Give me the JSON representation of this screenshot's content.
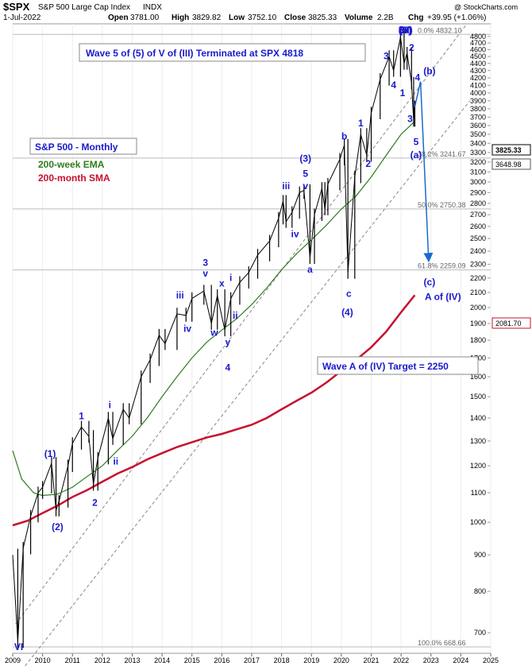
{
  "header": {
    "symbol": "$SPX",
    "name": "S&P 500 Large Cap Index",
    "exchange": "INDX",
    "watermark": "@ StockCharts.com",
    "date": "1-Jul-2022",
    "open_label": "Open",
    "open": "3781.00",
    "high_label": "High",
    "high": "3829.82",
    "low_label": "Low",
    "low": "3752.10",
    "close_label": "Close",
    "close": "3825.33",
    "volume_label": "Volume",
    "volume": "2.2B",
    "chg_label": "Chg",
    "chg": "+39.95 (+1.06%)"
  },
  "legend": {
    "title": "S&P 500 - Monthly",
    "ema": "200-week EMA",
    "sma": "200-month SMA",
    "ema_color": "#2e7d1e",
    "sma_color": "#c8102e"
  },
  "annotations": {
    "top_box": "Wave 5 of (5) of V of (III) Terminated at SPX 4818",
    "target_box": "Wave A of (IV) Target = 2250"
  },
  "price_tags": [
    {
      "value": "3825.33",
      "style": "dark"
    },
    {
      "value": "3648.98",
      "style": "light"
    },
    {
      "value": "2081.70",
      "style": "red"
    }
  ],
  "chart_data": {
    "type": "line",
    "title": "",
    "xlabel": "",
    "ylabel": "",
    "y_scale": "log",
    "ylim": [
      655,
      5000
    ],
    "xlim": [
      2009.0,
      2025.0
    ],
    "x_ticks": [
      "2009",
      "2010",
      "2011",
      "2012",
      "2013",
      "2014",
      "2015",
      "2016",
      "2017",
      "2018",
      "2019",
      "2020",
      "2021",
      "2022",
      "2023",
      "2024",
      "2025"
    ],
    "y_ticks": [
      "700",
      "800",
      "900",
      "1000",
      "1100",
      "1200",
      "1300",
      "1400",
      "1500",
      "1600",
      "1700",
      "1800",
      "1900",
      "2000",
      "2100",
      "2200",
      "2300",
      "2400",
      "2500",
      "2600",
      "2700",
      "2800",
      "2900",
      "3000",
      "3100",
      "3200",
      "3300",
      "3400",
      "3500",
      "3600",
      "3700",
      "3800",
      "3900",
      "4000",
      "4100",
      "4200",
      "4300",
      "4400",
      "4500",
      "4600",
      "4700",
      "4800"
    ],
    "series": [
      {
        "name": "",
        "color": "#000000",
        "points": [
          [
            2009.0,
            900
          ],
          [
            2009.17,
            680
          ],
          [
            2009.35,
            920
          ],
          [
            2009.6,
            1020
          ],
          [
            2009.85,
            1100
          ],
          [
            2010.0,
            1120
          ],
          [
            2010.3,
            1210
          ],
          [
            2010.45,
            1040
          ],
          [
            2010.55,
            1070
          ],
          [
            2010.85,
            1200
          ],
          [
            2011.0,
            1290
          ],
          [
            2011.3,
            1360
          ],
          [
            2011.55,
            1320
          ],
          [
            2011.7,
            1130
          ],
          [
            2011.85,
            1230
          ],
          [
            2012.2,
            1400
          ],
          [
            2012.35,
            1310
          ],
          [
            2012.7,
            1440
          ],
          [
            2012.9,
            1400
          ],
          [
            2013.3,
            1600
          ],
          [
            2013.6,
            1690
          ],
          [
            2013.9,
            1830
          ],
          [
            2014.1,
            1780
          ],
          [
            2014.5,
            1960
          ],
          [
            2014.8,
            1950
          ],
          [
            2015.0,
            2060
          ],
          [
            2015.4,
            2110
          ],
          [
            2015.65,
            1900
          ],
          [
            2015.85,
            2080
          ],
          [
            2016.1,
            1860
          ],
          [
            2016.3,
            2060
          ],
          [
            2016.6,
            2170
          ],
          [
            2016.9,
            2240
          ],
          [
            2017.2,
            2370
          ],
          [
            2017.6,
            2480
          ],
          [
            2017.9,
            2670
          ],
          [
            2018.05,
            2820
          ],
          [
            2018.15,
            2640
          ],
          [
            2018.35,
            2720
          ],
          [
            2018.6,
            2900
          ],
          [
            2018.75,
            2920
          ],
          [
            2018.95,
            2350
          ],
          [
            2019.1,
            2700
          ],
          [
            2019.35,
            2940
          ],
          [
            2019.45,
            2750
          ],
          [
            2019.55,
            2980
          ],
          [
            2019.95,
            3230
          ],
          [
            2020.1,
            3380
          ],
          [
            2020.22,
            2240
          ],
          [
            2020.45,
            3050
          ],
          [
            2020.65,
            3500
          ],
          [
            2020.85,
            3270
          ],
          [
            2021.0,
            3750
          ],
          [
            2021.3,
            4180
          ],
          [
            2021.6,
            4500
          ],
          [
            2021.75,
            4300
          ],
          [
            2021.98,
            4790
          ],
          [
            2022.1,
            4400
          ],
          [
            2022.2,
            4550
          ],
          [
            2022.35,
            4130
          ],
          [
            2022.42,
            3660
          ],
          [
            2022.46,
            3825
          ]
        ]
      },
      {
        "name": "200-week EMA",
        "color": "#2e7d1e",
        "points": [
          [
            2009.0,
            1260
          ],
          [
            2009.3,
            1150
          ],
          [
            2009.7,
            1100
          ],
          [
            2010.0,
            1090
          ],
          [
            2010.5,
            1095
          ],
          [
            2011.0,
            1120
          ],
          [
            2011.5,
            1160
          ],
          [
            2012.0,
            1200
          ],
          [
            2012.5,
            1260
          ],
          [
            2013.0,
            1320
          ],
          [
            2013.5,
            1400
          ],
          [
            2014.0,
            1500
          ],
          [
            2014.5,
            1600
          ],
          [
            2015.0,
            1700
          ],
          [
            2015.5,
            1790
          ],
          [
            2016.0,
            1860
          ],
          [
            2016.5,
            1930
          ],
          [
            2017.0,
            2020
          ],
          [
            2017.5,
            2130
          ],
          [
            2018.0,
            2260
          ],
          [
            2018.5,
            2380
          ],
          [
            2019.0,
            2490
          ],
          [
            2019.5,
            2610
          ],
          [
            2020.0,
            2750
          ],
          [
            2020.5,
            2870
          ],
          [
            2021.0,
            3050
          ],
          [
            2021.5,
            3270
          ],
          [
            2022.0,
            3500
          ],
          [
            2022.46,
            3649
          ]
        ]
      },
      {
        "name": "200-month SMA",
        "color": "#c8102e",
        "points": [
          [
            2009.0,
            990
          ],
          [
            2009.5,
            1005
          ],
          [
            2010.0,
            1030
          ],
          [
            2010.5,
            1055
          ],
          [
            2011.0,
            1085
          ],
          [
            2011.5,
            1110
          ],
          [
            2012.0,
            1140
          ],
          [
            2012.5,
            1170
          ],
          [
            2013.0,
            1195
          ],
          [
            2013.5,
            1225
          ],
          [
            2014.0,
            1250
          ],
          [
            2014.5,
            1275
          ],
          [
            2015.0,
            1295
          ],
          [
            2015.5,
            1315
          ],
          [
            2016.0,
            1330
          ],
          [
            2016.5,
            1350
          ],
          [
            2017.0,
            1370
          ],
          [
            2017.5,
            1400
          ],
          [
            2018.0,
            1440
          ],
          [
            2018.5,
            1480
          ],
          [
            2019.0,
            1520
          ],
          [
            2019.5,
            1570
          ],
          [
            2020.0,
            1630
          ],
          [
            2020.5,
            1690
          ],
          [
            2021.0,
            1760
          ],
          [
            2021.5,
            1850
          ],
          [
            2022.0,
            1970
          ],
          [
            2022.46,
            2082
          ]
        ]
      }
    ],
    "projection": [
      [
        2022.46,
        3825
      ],
      [
        2022.65,
        4150
      ],
      [
        2022.92,
        2350
      ]
    ],
    "channel_lines": [
      {
        "from": [
          2009.1,
          720
        ],
        "to": [
          2024.2,
          5000
        ]
      },
      {
        "from": [
          2009.3,
          620
        ],
        "to": [
          2024.3,
          3900
        ]
      }
    ],
    "fib_levels": [
      {
        "label": "0.0% 4832.10",
        "value": 4832.1
      },
      {
        "label": "38.2% 3241.67",
        "value": 3241.67
      },
      {
        "label": "50.0% 2750.38",
        "value": 2750.38
      },
      {
        "label": "61.8% 2259.09",
        "value": 2259.09
      },
      {
        "label": "100.0% 668.66",
        "value": 668.66
      }
    ],
    "wave_labels": [
      {
        "text": "VI",
        "x": 2009.2,
        "y": 662
      },
      {
        "text": "(1)",
        "x": 2010.25,
        "y": 1235
      },
      {
        "text": "(2)",
        "x": 2010.5,
        "y": 975
      },
      {
        "text": "1",
        "x": 2011.3,
        "y": 1395
      },
      {
        "text": "2",
        "x": 2011.75,
        "y": 1055
      },
      {
        "text": "i",
        "x": 2012.25,
        "y": 1445
      },
      {
        "text": "ii",
        "x": 2012.45,
        "y": 1205
      },
      {
        "text": "iii",
        "x": 2014.6,
        "y": 2060
      },
      {
        "text": "iv",
        "x": 2014.85,
        "y": 1850
      },
      {
        "text": "3",
        "x": 2015.45,
        "y": 2290
      },
      {
        "text": "v",
        "x": 2015.45,
        "y": 2210
      },
      {
        "text": "w",
        "x": 2015.75,
        "y": 1825
      },
      {
        "text": "x",
        "x": 2016.0,
        "y": 2140
      },
      {
        "text": "i",
        "x": 2016.3,
        "y": 2180
      },
      {
        "text": "ii",
        "x": 2016.45,
        "y": 1930
      },
      {
        "text": "y",
        "x": 2016.2,
        "y": 1770
      },
      {
        "text": "4",
        "x": 2016.2,
        "y": 1630
      },
      {
        "text": "iii",
        "x": 2018.15,
        "y": 2930
      },
      {
        "text": "iv",
        "x": 2018.45,
        "y": 2510
      },
      {
        "text": "(3)",
        "x": 2018.8,
        "y": 3205
      },
      {
        "text": "5",
        "x": 2018.8,
        "y": 3050
      },
      {
        "text": "v",
        "x": 2018.8,
        "y": 2930
      },
      {
        "text": "a",
        "x": 2018.95,
        "y": 2240
      },
      {
        "text": "b",
        "x": 2020.1,
        "y": 3440
      },
      {
        "text": "c",
        "x": 2020.25,
        "y": 2070
      },
      {
        "text": "(4)",
        "x": 2020.2,
        "y": 1950
      },
      {
        "text": "1",
        "x": 2020.65,
        "y": 3590
      },
      {
        "text": "2",
        "x": 2020.9,
        "y": 3150
      },
      {
        "text": "3",
        "x": 2021.5,
        "y": 4460
      },
      {
        "text": "4",
        "x": 2021.75,
        "y": 4060
      },
      {
        "text": "1",
        "x": 2022.05,
        "y": 3960
      },
      {
        "text": "2",
        "x": 2022.35,
        "y": 4580
      },
      {
        "text": "5",
        "x": 2022.0,
        "y": 4880
      },
      {
        "text": "(5)",
        "x": 2022.15,
        "y": 5150
      },
      {
        "text": "V",
        "x": 2022.15,
        "y": 5450
      },
      {
        "text": "(III)",
        "x": 2022.15,
        "y": 5820
      },
      {
        "text": "3",
        "x": 2022.3,
        "y": 3640
      },
      {
        "text": "4",
        "x": 2022.55,
        "y": 4160
      },
      {
        "text": "(b)",
        "x": 2022.95,
        "y": 4250
      },
      {
        "text": "5",
        "x": 2022.5,
        "y": 3380
      },
      {
        "text": "(a)",
        "x": 2022.5,
        "y": 3240
      },
      {
        "text": "(c)",
        "x": 2022.95,
        "y": 2150
      },
      {
        "text": "A of (IV)",
        "x": 2023.4,
        "y": 2050
      }
    ]
  }
}
